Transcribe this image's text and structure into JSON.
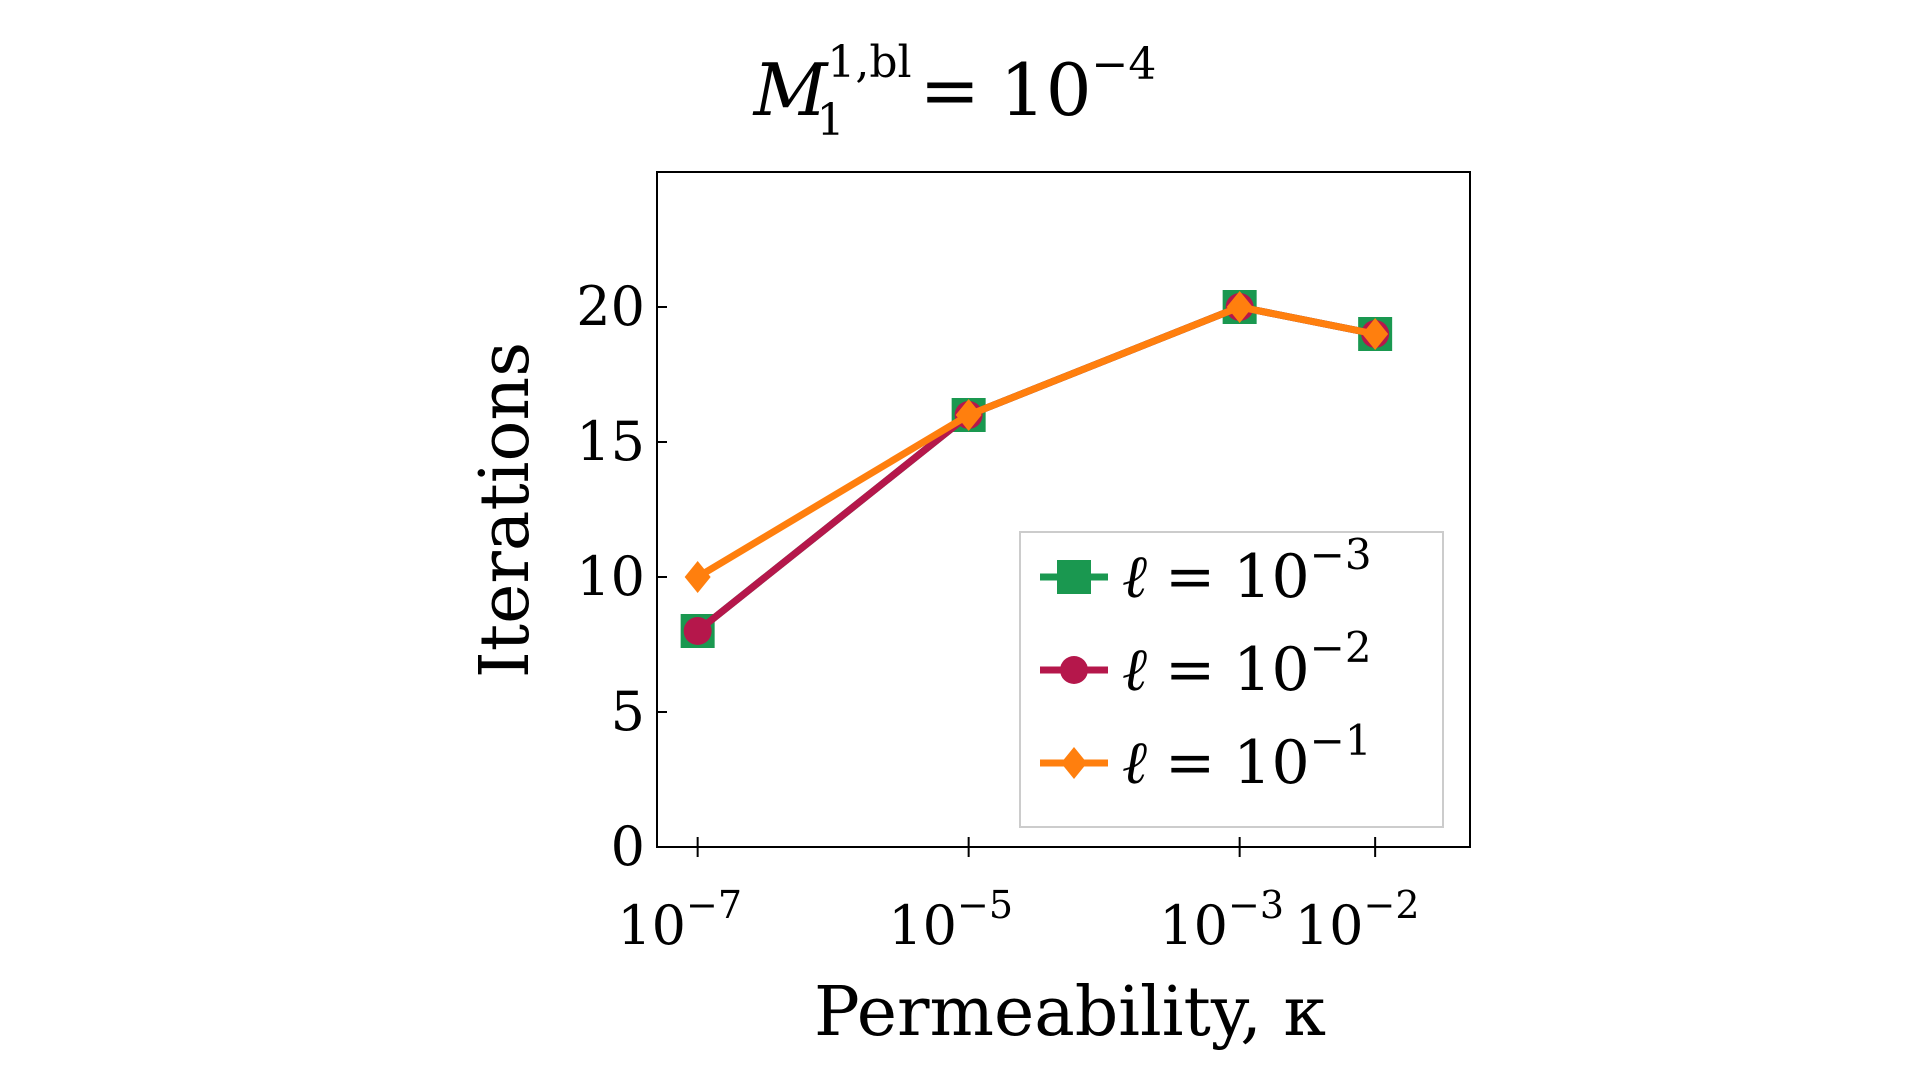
{
  "chart_data": {
    "type": "line",
    "title": {
      "base": "M",
      "subscript": "1",
      "superscript": "1,bl",
      "relation": "=",
      "value_base": "10",
      "value_exponent": "−4"
    },
    "xlabel": "Permeability, κ",
    "ylabel": "Iterations",
    "x_scale": "log",
    "x": [
      1e-07,
      1e-05,
      0.001,
      0.01
    ],
    "x_ticks": [
      {
        "value": 1e-07,
        "base": "10",
        "exponent": "−7"
      },
      {
        "value": 1e-05,
        "base": "10",
        "exponent": "−5"
      },
      {
        "value": 0.001,
        "base": "10",
        "exponent": "−3"
      },
      {
        "value": 0.01,
        "base": "10",
        "exponent": "−2"
      }
    ],
    "xlim_log10": [
      -7.3,
      -1.3
    ],
    "ylim": [
      0,
      25
    ],
    "y_ticks": [
      0,
      5,
      10,
      15,
      20
    ],
    "grid": false,
    "legend_position": "bottom-right",
    "series": [
      {
        "legend": {
          "symbol": "ℓ",
          "relation": "=",
          "base": "10",
          "exponent": "−3"
        },
        "values": [
          8,
          16,
          20,
          19
        ],
        "color": "#1a9850",
        "marker": "square"
      },
      {
        "legend": {
          "symbol": "ℓ",
          "relation": "=",
          "base": "10",
          "exponent": "−2"
        },
        "values": [
          8,
          16,
          20,
          19
        ],
        "color": "#b5174b",
        "marker": "circle"
      },
      {
        "legend": {
          "symbol": "ℓ",
          "relation": "=",
          "base": "10",
          "exponent": "−1"
        },
        "values": [
          10,
          16,
          20,
          19
        ],
        "color": "#ff7f0e",
        "marker": "diamond"
      }
    ]
  }
}
